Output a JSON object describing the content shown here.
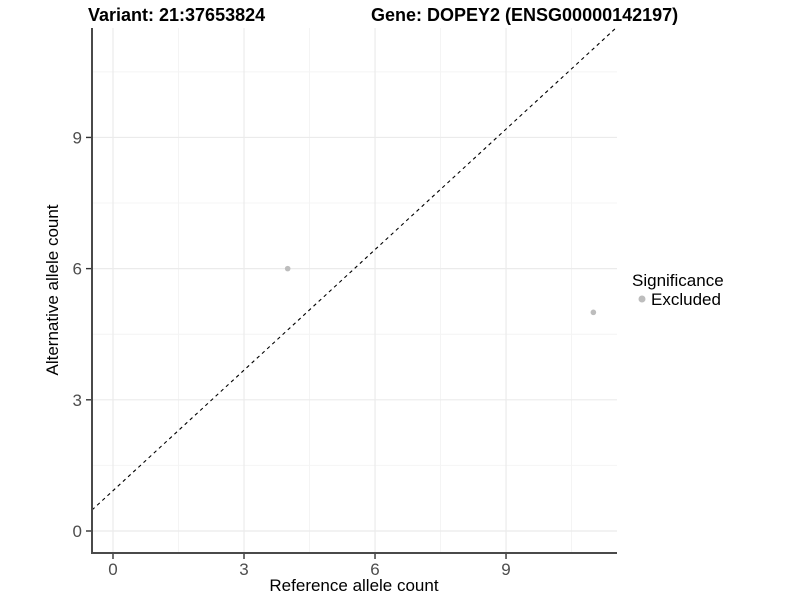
{
  "header": {
    "variant_title": "Variant: 21:37653824",
    "gene_title": "Gene: DOPEY2 (ENSG00000142197)"
  },
  "chart_data": {
    "type": "scatter",
    "title_left": "Variant: 21:37653824",
    "title_right": "Gene: DOPEY2 (ENSG00000142197)",
    "xlabel": "Reference allele count",
    "ylabel": "Alternative allele count",
    "xlim": [
      -0.5,
      11.5
    ],
    "ylim": [
      -0.5,
      11.5
    ],
    "x_major_ticks": [
      0,
      3,
      6,
      9
    ],
    "y_major_ticks": [
      0,
      3,
      6,
      9
    ],
    "x_minor_gridlines": [
      1.5,
      4.5,
      7.5,
      10.5
    ],
    "y_minor_gridlines": [
      1.5,
      4.5,
      7.5,
      10.5
    ],
    "grid": true,
    "identity_line": {
      "style": "dashed",
      "equation": "y = x",
      "color": "#000000"
    },
    "series": [
      {
        "name": "Excluded",
        "color": "#bdbdbd",
        "points": [
          {
            "x": 4,
            "y": 6
          },
          {
            "x": 11,
            "y": 5
          }
        ]
      }
    ],
    "legend": {
      "title": "Significance",
      "position": "right",
      "items": [
        {
          "label": "Excluded",
          "color": "#bdbdbd"
        }
      ]
    }
  },
  "colors": {
    "background": "#ffffff",
    "grid_major": "#ebebeb",
    "grid_minor": "#f4f4f4",
    "axis_line": "#4a4a4a",
    "tick_mark": "#333333",
    "point": "#bdbdbd",
    "identity_line": "#000000"
  }
}
